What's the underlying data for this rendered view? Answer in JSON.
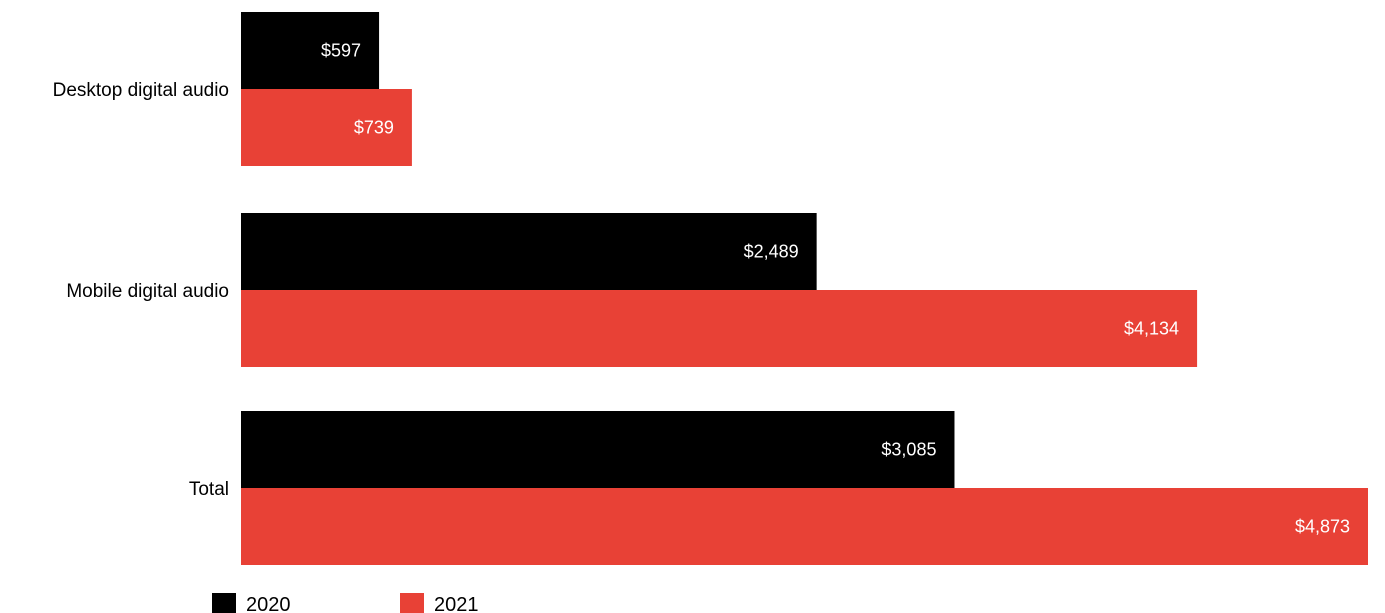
{
  "chart_data": {
    "type": "bar",
    "orientation": "horizontal",
    "categories": [
      "Desktop digital audio",
      "Mobile digital audio",
      "Total"
    ],
    "series": [
      {
        "name": "2020",
        "color": "#000000",
        "values": [
          597,
          2489,
          3085
        ],
        "labels": [
          "$597",
          "$2,489",
          "$3,085"
        ]
      },
      {
        "name": "2021",
        "color": "#e84136",
        "values": [
          739,
          4134,
          4873
        ],
        "labels": [
          "$739",
          "$4,134",
          "$4,873"
        ]
      }
    ],
    "title": "",
    "xlabel": "",
    "ylabel": "",
    "xlim": [
      0,
      4873
    ],
    "grid": false,
    "legend_position": "bottom-left"
  }
}
